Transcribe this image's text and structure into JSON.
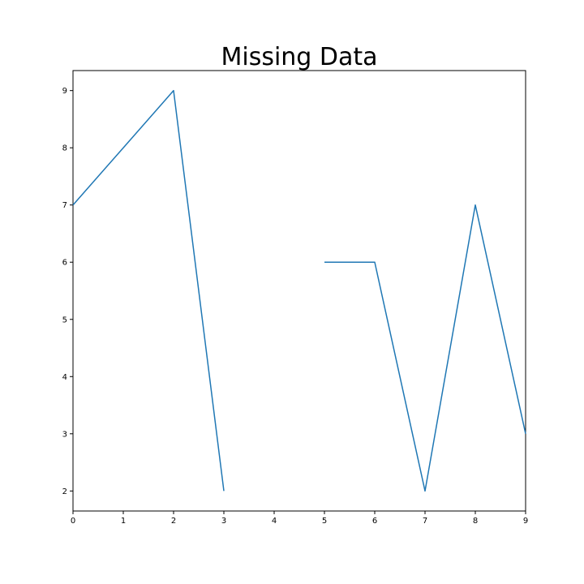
{
  "chart_data": {
    "type": "line",
    "title": "Missing Data",
    "xlabel": "",
    "ylabel": "",
    "x": [
      0,
      1,
      2,
      3,
      4,
      5,
      6,
      7,
      8,
      9
    ],
    "series": [
      {
        "values": [
          7,
          8,
          9,
          2,
          null,
          6,
          6,
          2,
          7,
          3
        ]
      }
    ],
    "xlim": [
      0,
      9
    ],
    "ylim": [
      1.65,
      9.35
    ],
    "xticks": [
      "0",
      "1",
      "2",
      "3",
      "4",
      "5",
      "6",
      "7",
      "8",
      "9"
    ],
    "yticks": [
      "2",
      "3",
      "4",
      "5",
      "6",
      "7",
      "8",
      "9"
    ],
    "grid": false,
    "line_color": "#1f77b4"
  }
}
